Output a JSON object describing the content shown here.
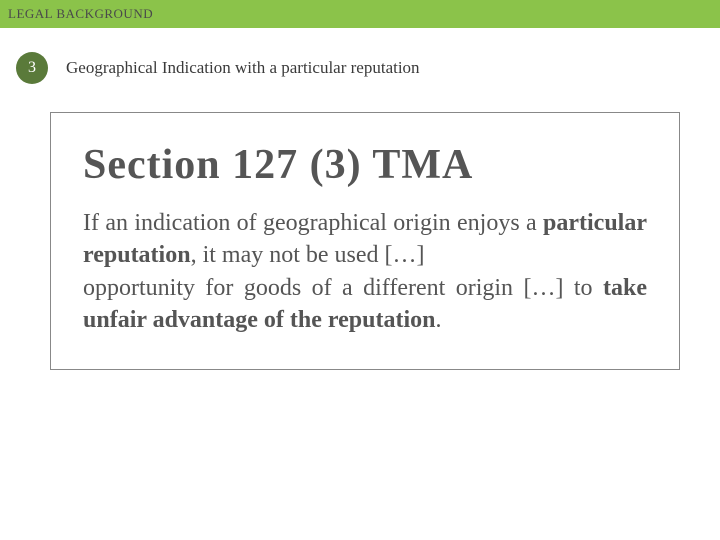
{
  "header": {
    "title": "LEGAL BACKGROUND",
    "bar_color": "#8bc34a",
    "text_color": "#4a4a4a"
  },
  "badge": {
    "number": "3",
    "bg_color": "#5a7a3a",
    "text_color": "#ffffff"
  },
  "subtitle": "Geographical Indication with a particular reputation",
  "box": {
    "heading": "Section 127 (3) TMA",
    "para1_pre": "If an indication of geographical origin enjoys a ",
    "para1_bold": "particular reputation",
    "para1_post": ", it may not be used […]",
    "para2_pre": "opportunity for goods of a different origin […] to ",
    "para2_bold": "take unfair advantage of the reputation",
    "para2_post": "."
  }
}
